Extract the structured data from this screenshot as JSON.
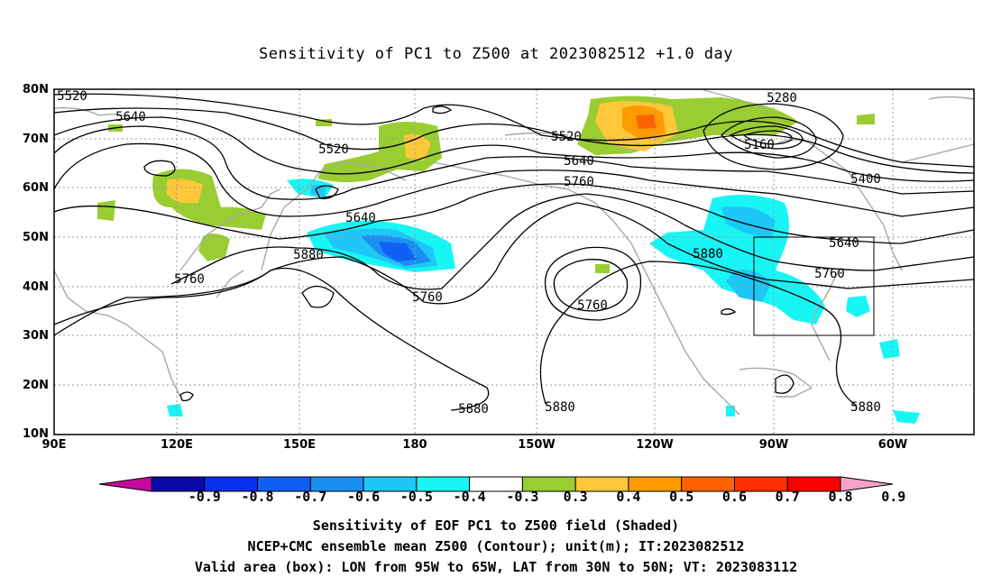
{
  "title": "Sensitivity of PC1 to Z500 at 2023082512 +1.0 day",
  "lat_labels": [
    "80N",
    "70N",
    "60N",
    "50N",
    "40N",
    "30N",
    "20N",
    "10N"
  ],
  "lon_labels": [
    "90E",
    "120E",
    "150E",
    "180",
    "150W",
    "120W",
    "90W",
    "60W"
  ],
  "contour_labels": [
    "5520",
    "5640",
    "5520",
    "5640",
    "5880",
    "5760",
    "5520",
    "5640",
    "5760",
    "5760",
    "5760",
    "5880",
    "5880",
    "5280",
    "5160",
    "5400",
    "5640",
    "5760",
    "5880",
    "5880"
  ],
  "colorbar": {
    "labels": [
      "-0.9",
      "-0.8",
      "-0.7",
      "-0.6",
      "-0.5",
      "-0.4",
      "-0.3",
      "0.3",
      "0.4",
      "0.5",
      "0.6",
      "0.7",
      "0.8",
      "0.9"
    ],
    "colors": [
      "#c7079e",
      "#0a08a8",
      "#0a2ff0",
      "#1060f5",
      "#1b8ef2",
      "#1ec7f5",
      "#18f5f5",
      "#ffffff",
      "#9acd32",
      "#ffc73a",
      "#ff9a00",
      "#ff6300",
      "#ff3000",
      "#ff0000",
      "#f5a3c8"
    ]
  },
  "valid_area": {
    "lon_from": "95W",
    "lon_to": "65W",
    "lat_from": "30N",
    "lat_to": "50N"
  },
  "captions": [
    "Sensitivity of EOF PC1 to Z500 field (Shaded)",
    "NCEP+CMC ensemble mean Z500 (Contour); unit(m); IT:2023082512",
    "Valid area (box): LON from 95W to 65W, LAT from 30N to 50N; VT: 2023083112"
  ]
}
